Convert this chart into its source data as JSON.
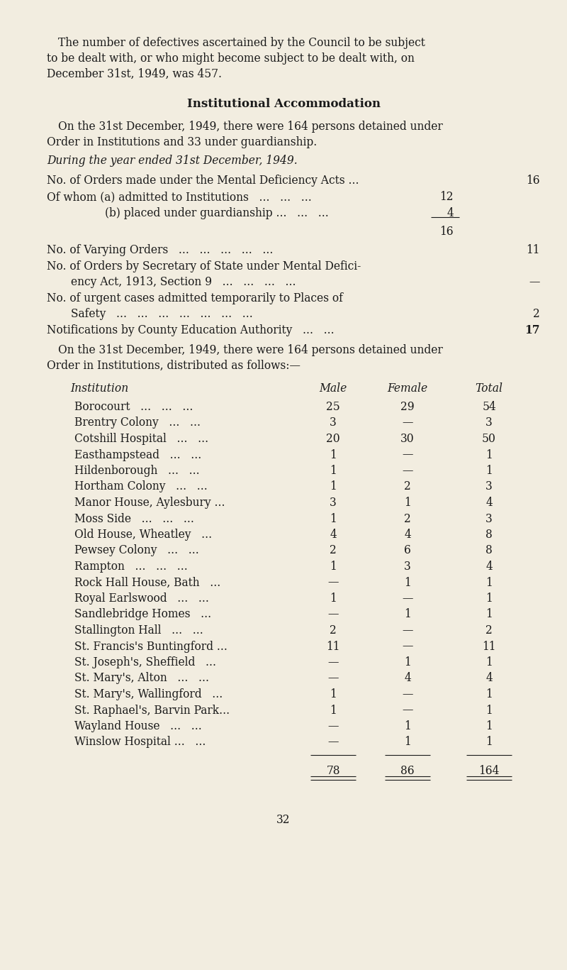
{
  "bg_color": "#f2ede0",
  "text_color": "#1a1a1a",
  "page_number": "32",
  "table_header": [
    "Institution",
    "Male",
    "Female",
    "Total"
  ],
  "table_rows": [
    [
      "Borocourt   ...   ...   ...",
      "25",
      "29",
      "54"
    ],
    [
      "Brentry Colony   ...   ...",
      "3",
      "—",
      "3"
    ],
    [
      "Cotshill Hospital   ...   ...",
      "20",
      "30",
      "50"
    ],
    [
      "Easthampstead   ...   ...",
      "1",
      "—",
      "1"
    ],
    [
      "Hildenborough   ...   ...",
      "1",
      "—",
      "1"
    ],
    [
      "Hortham Colony   ...   ...",
      "1",
      "2",
      "3"
    ],
    [
      "Manor House, Aylesbury ...",
      "3",
      "1",
      "4"
    ],
    [
      "Moss Side   ...   ...   ...",
      "1",
      "2",
      "3"
    ],
    [
      "Old House, Wheatley   ...",
      "4",
      "4",
      "8"
    ],
    [
      "Pewsey Colony   ...   ...",
      "2",
      "6",
      "8"
    ],
    [
      "Rampton   ...   ...   ...",
      "1",
      "3",
      "4"
    ],
    [
      "Rock Hall House, Bath   ...",
      "—",
      "1",
      "1"
    ],
    [
      "Royal Earlswood   ...   ...",
      "1",
      "—",
      "1"
    ],
    [
      "Sandlebridge Homes   ...",
      "—",
      "1",
      "1"
    ],
    [
      "Stallington Hall   ...   ...",
      "2",
      "—",
      "2"
    ],
    [
      "St. Francis's Buntingford ...",
      "11",
      "—",
      "11"
    ],
    [
      "St. Joseph's, Sheffield   ...",
      "—",
      "1",
      "1"
    ],
    [
      "St. Mary's, Alton   ...   ...",
      "—",
      "4",
      "4"
    ],
    [
      "St. Mary's, Wallingford   ...",
      "1",
      "—",
      "1"
    ],
    [
      "St. Raphael's, Barvin Park...",
      "1",
      "—",
      "1"
    ],
    [
      "Wayland House   ...   ...",
      "—",
      "1",
      "1"
    ],
    [
      "Winslow Hospital ...   ...",
      "—",
      "1",
      "1"
    ]
  ],
  "table_totals": [
    "78",
    "86",
    "164"
  ],
  "fontsize_body": 11.2,
  "fontsize_title": 12.0
}
